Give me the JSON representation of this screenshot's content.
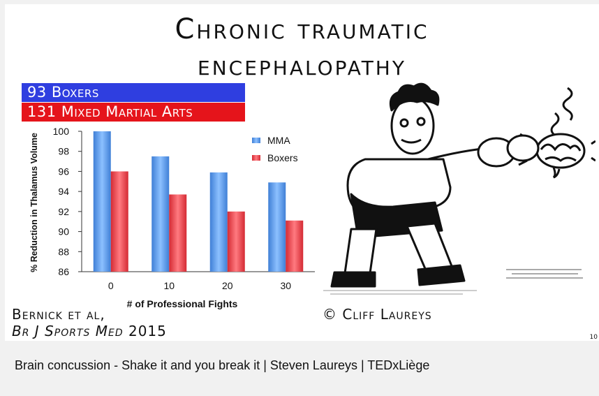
{
  "slide": {
    "title_line1": "Chronic traumatic",
    "title_line2": "encephalopathy",
    "banner1": "93 Boxers",
    "banner2": "131 Mixed Martial Arts",
    "citation_line1": "Bernick et al,",
    "citation_journal": "Br J Sports Med",
    "citation_year": "2015",
    "copyright": "© Cliff Laureys",
    "page_number": "10",
    "colors": {
      "banner1": "#2f3ee0",
      "banner2": "#e5141b",
      "mma": "#4a8fe0",
      "boxers": "#e8434a"
    }
  },
  "video": {
    "title": "Brain concussion - Shake it and you break it | Steven Laureys | TEDxLiège"
  },
  "chart_data": {
    "type": "bar",
    "categories": [
      "0",
      "10",
      "20",
      "30"
    ],
    "series": [
      {
        "name": "MMA",
        "values": [
          100,
          97.5,
          95.9,
          94.9
        ]
      },
      {
        "name": "Boxers",
        "values": [
          96,
          93.7,
          92,
          91.1
        ]
      }
    ],
    "xlabel": "# of Professional Fights",
    "ylabel": "% Reduction in Thalamus Volume",
    "ylim": [
      86,
      100
    ],
    "yticks": [
      86,
      88,
      90,
      92,
      94,
      96,
      98,
      100
    ],
    "legend": "top-right",
    "grid": false
  }
}
